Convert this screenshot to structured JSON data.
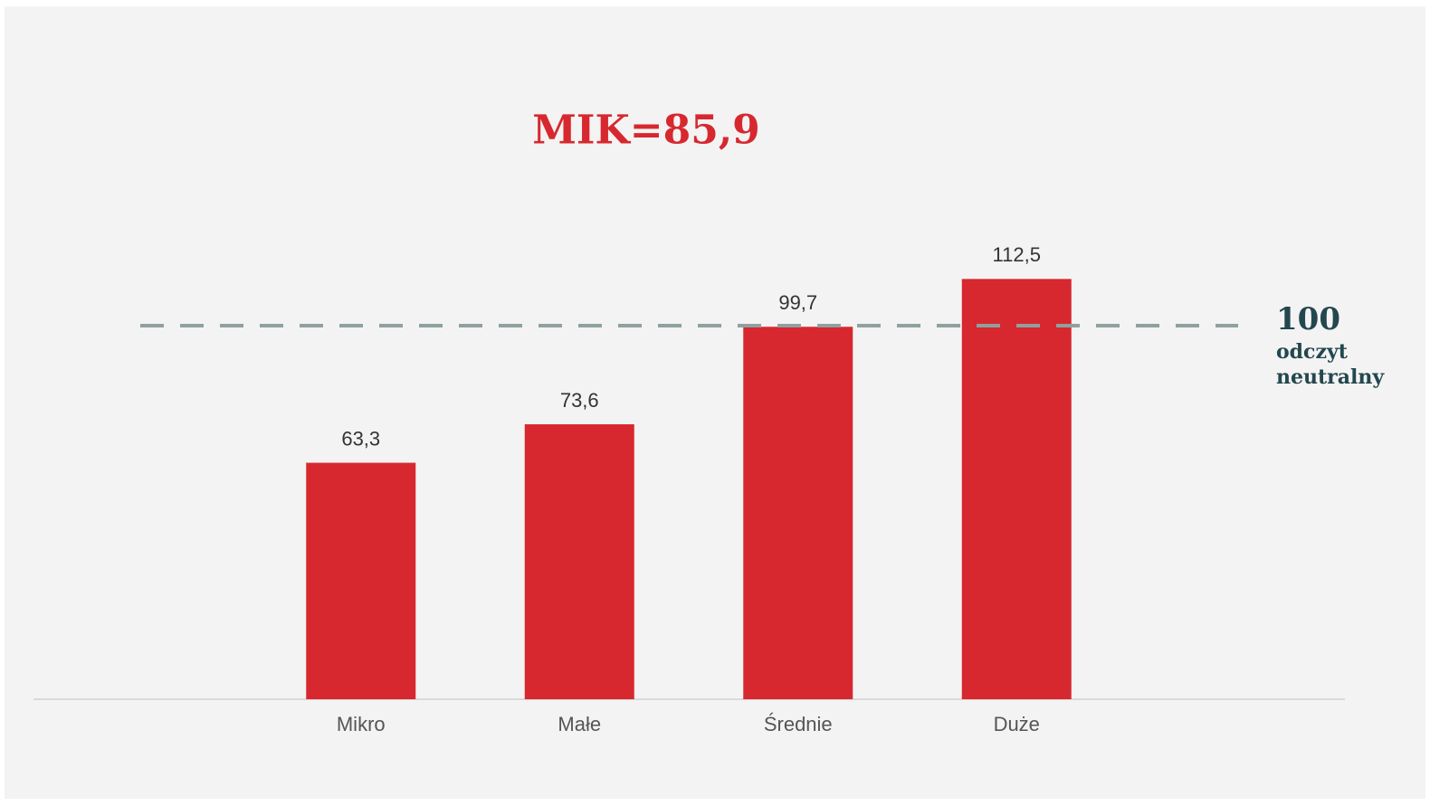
{
  "chart_data": {
    "type": "bar",
    "title": "MIK=85,9",
    "categories": [
      "Mikro",
      "Małe",
      "Średnie",
      "Duże"
    ],
    "values": [
      63.3,
      73.6,
      99.7,
      112.5
    ],
    "value_labels": [
      "63,3",
      "73,6",
      "99,7",
      "112,5"
    ],
    "color": "#d7282f",
    "ylim": [
      0,
      120
    ],
    "reference_line": {
      "value": 100,
      "label": [
        "odczyt",
        "neutralny"
      ],
      "color": "#8fa0a0"
    }
  }
}
